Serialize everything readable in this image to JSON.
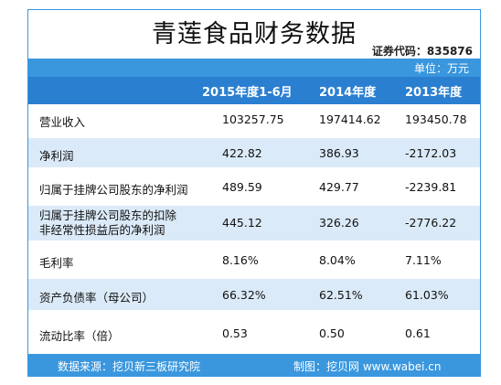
{
  "title": "青莲食品财务数据",
  "stock_code": "证券代码：835876",
  "unit": "单位：万元",
  "columns": [
    "2015年度1-6月",
    "2014年度",
    "2013年度"
  ],
  "rows": [
    {
      "label": "营业收入",
      "v1": "103257.75",
      "v2": "197414.62",
      "v3": "193450.78"
    },
    {
      "label": "净利润",
      "v1": "422.82",
      "v2": "386.93",
      "v3": "-2172.03"
    },
    {
      "label": "归属于挂牌公司股东的净利润",
      "v1": "489.59",
      "v2": "429.77",
      "v3": "-2239.81"
    },
    {
      "label_line1": "归属于挂牌公司股东的扣除",
      "label_line2": "非经常性损益后的净利润",
      "v1": "445.12",
      "v2": "326.26",
      "v3": "-2776.22"
    },
    {
      "label": "毛利率",
      "v1": "8.16%",
      "v2": "8.04%",
      "v3": "7.11%"
    },
    {
      "label": "资产负债率（母公司）",
      "v1": "66.32%",
      "v2": "62.51%",
      "v3": "61.03%"
    },
    {
      "label": "流动比率（倍）",
      "v1": "0.53",
      "v2": "0.50",
      "v3": "0.61"
    }
  ],
  "footer": {
    "source": "数据来源：挖贝新三板研究院",
    "maker": "制图：挖贝网 www.wabei.cn"
  },
  "colors": {
    "header": "#2b7fd1",
    "bar": "#3a97de",
    "row_alt": "#dbeaf8"
  }
}
